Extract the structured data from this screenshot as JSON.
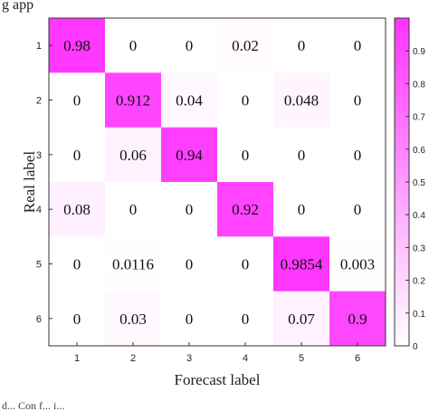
{
  "top_text": "g app",
  "bottom_text": "d... Con f... i...",
  "chart_data": {
    "type": "heatmap",
    "title": "",
    "xlabel": "Forecast label",
    "ylabel": "Real label",
    "x_categories": [
      "1",
      "2",
      "3",
      "4",
      "5",
      "6"
    ],
    "y_categories": [
      "1",
      "2",
      "3",
      "4",
      "5",
      "6"
    ],
    "matrix": [
      [
        0.98,
        0,
        0,
        0.02,
        0,
        0
      ],
      [
        0,
        0.912,
        0.04,
        0,
        0.048,
        0
      ],
      [
        0,
        0.06,
        0.94,
        0,
        0,
        0
      ],
      [
        0.08,
        0,
        0,
        0.92,
        0,
        0
      ],
      [
        0,
        0.0116,
        0,
        0,
        0.9854,
        0.003
      ],
      [
        0,
        0.03,
        0,
        0,
        0.07,
        0.9
      ]
    ],
    "cell_labels": [
      [
        "0.98",
        "0",
        "0",
        "0.02",
        "0",
        "0"
      ],
      [
        "0",
        "0.912",
        "0.04",
        "0",
        "0.048",
        "0"
      ],
      [
        "0",
        "0.06",
        "0.94",
        "0",
        "0",
        "0"
      ],
      [
        "0.08",
        "0",
        "0",
        "0.92",
        "0",
        "0"
      ],
      [
        "0",
        "0.0116",
        "0",
        "0",
        "0.9854",
        "0.003"
      ],
      [
        "0",
        "0.03",
        "0",
        "0",
        "0.07",
        "0.9"
      ]
    ],
    "colorbar": {
      "range": [
        0,
        1
      ],
      "color_low": "#ffffff",
      "color_high": "#ff33ff",
      "ticks": [
        {
          "value": 0,
          "label": "0"
        },
        {
          "value": 0.1,
          "label": "0.1"
        },
        {
          "value": 0.2,
          "label": "0.2"
        },
        {
          "value": 0.3,
          "label": "0.3"
        },
        {
          "value": 0.4,
          "label": "0.4"
        },
        {
          "value": 0.5,
          "label": "0.5"
        },
        {
          "value": 0.6,
          "label": "0.6"
        },
        {
          "value": 0.7,
          "label": "0.7"
        },
        {
          "value": 0.8,
          "label": "0.8"
        },
        {
          "value": 0.9,
          "label": "0.9"
        }
      ]
    }
  }
}
